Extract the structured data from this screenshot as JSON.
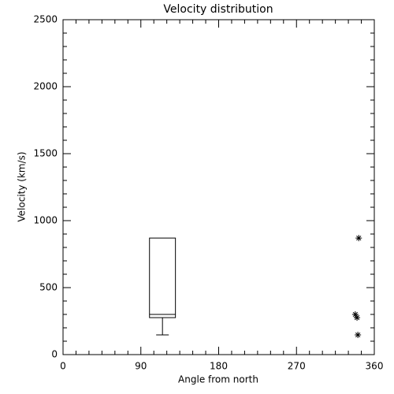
{
  "chart_data": {
    "type": "box_scatter",
    "title": "Velocity distribution",
    "xlabel": "Angle from north",
    "ylabel": "Velocity (km/s)",
    "xlim": [
      0,
      360
    ],
    "xticks": [
      0,
      90,
      180,
      270,
      360
    ],
    "x_minor": 6,
    "ylim": [
      0,
      2500
    ],
    "yticks": [
      0,
      500,
      1000,
      1500,
      2000,
      2500
    ],
    "y_minor": 5,
    "color": "#000000",
    "box": {
      "x": 115,
      "width": 30,
      "min": 147,
      "q1": 276,
      "median": 300,
      "q3": 870,
      "max": 870
    },
    "points": {
      "x": [
        342,
        338,
        340,
        341
      ],
      "y": [
        870,
        300,
        276,
        147
      ]
    }
  }
}
